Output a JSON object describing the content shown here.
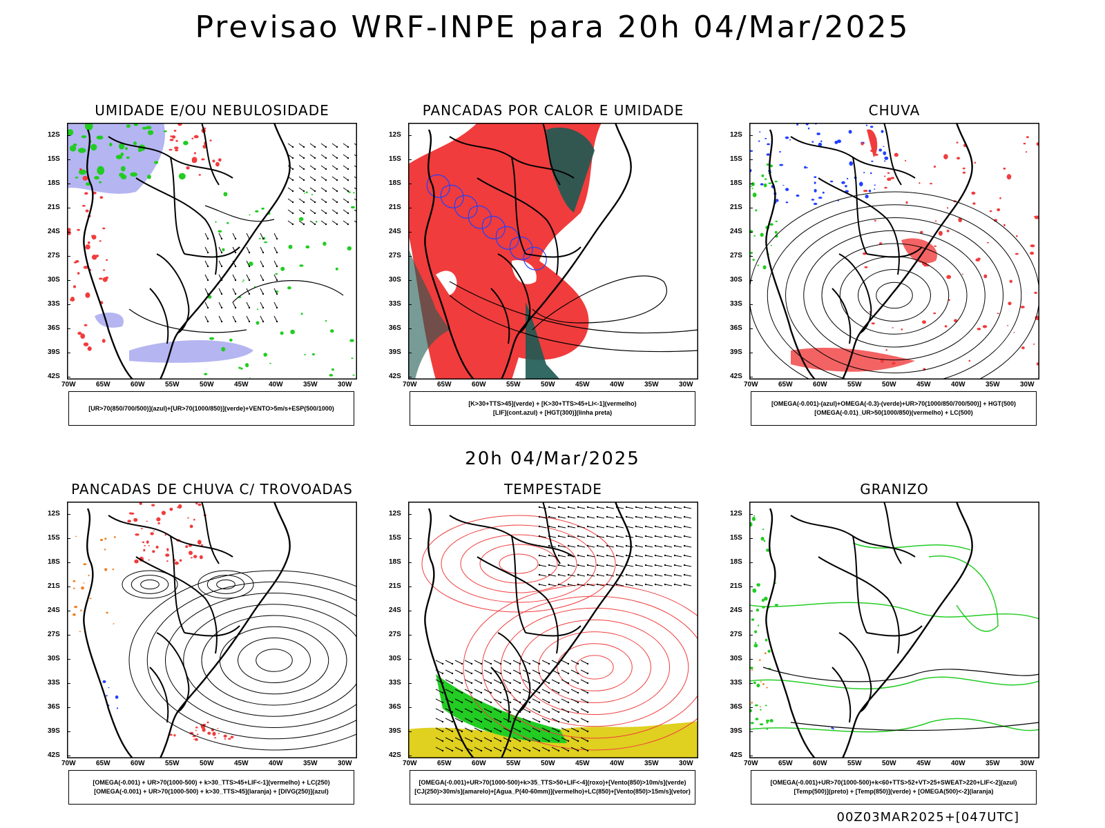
{
  "title": "Previsao WRF-INPE  para 20h 04/Mar/2025",
  "mid_title": "20h 04/Mar/2025",
  "footer": "00Z03MAR2025+[047UTC]",
  "lat_labels": [
    "12S",
    "15S",
    "18S",
    "21S",
    "24S",
    "27S",
    "30S",
    "33S",
    "36S",
    "39S",
    "42S"
  ],
  "lon_labels": [
    "70W",
    "65W",
    "60W",
    "55W",
    "50W",
    "45W",
    "40W",
    "35W",
    "30W"
  ],
  "colors": {
    "blue_fill": "#a8a8f0",
    "green": "#22cc22",
    "red": "#f03c3c",
    "dark_teal": "#1d5a52",
    "blue_line": "#2040ff",
    "yellow": "#e0d020",
    "orange": "#f08020"
  },
  "panels": [
    {
      "title": "UMIDADE E/OU NEBULOSIDADE",
      "legend": [
        "[UR>70(850/700/500)](azul)+[UR>70(1000/850)](verde)+VENTO>5m/s+ESP(500/1000)"
      ]
    },
    {
      "title": "PANCADAS POR CALOR E UMIDADE",
      "legend": [
        "[K>30+TTS>45](verde) + [K>30+TTS>45+LI<-1](vermelho)",
        "[LIF](cont.azul) + [HGT(300)](linha preta)"
      ]
    },
    {
      "title": "CHUVA",
      "legend": [
        "[OMEGA(-0.001)-(azul)+OMEGA(-0.3)-(verde)+UR>70(1000/850/700/500)] + HGT(500)",
        "[OMEGA(-0.01)_UR>50(1000/850)(vermelho) + LC(500)"
      ]
    },
    {
      "title": "PANCADAS DE CHUVA C/ TROVOADAS",
      "legend": [
        "[OMEGA(-0.001) + UR>70(1000-500) + k>30_TTS>45+LIF<-1](vermelho) + LC(250)",
        "[OMEGA(-0.001) + UR>70(1000-500) + k>30_TTS>45](laranja) + [DIVG(250)](azul)"
      ]
    },
    {
      "title": "TEMPESTADE",
      "legend": [
        "[OMEGA(-0.001)+UR>70(1000-500)+k>35_TTS>50+LIF<-4](roxo)+[Vento(850)>10m/s](verde)",
        "[CJ(250)>30m/s](amarelo)+[Agua_P(40-60mm)](vermelho)+LC(850)+[Vento(850)>15m/s](vetor)"
      ]
    },
    {
      "title": "GRANIZO",
      "legend": [
        "[OMEGA(-0.001)+UR>70(1000-500)+k<60+TTS>52+VT>25+SWEAT>220+LIF<-2](azul)",
        "[Temp(500)](preto) + [Temp(850)](verde) + [OMEGA(500)<-2](laranja)"
      ]
    }
  ]
}
